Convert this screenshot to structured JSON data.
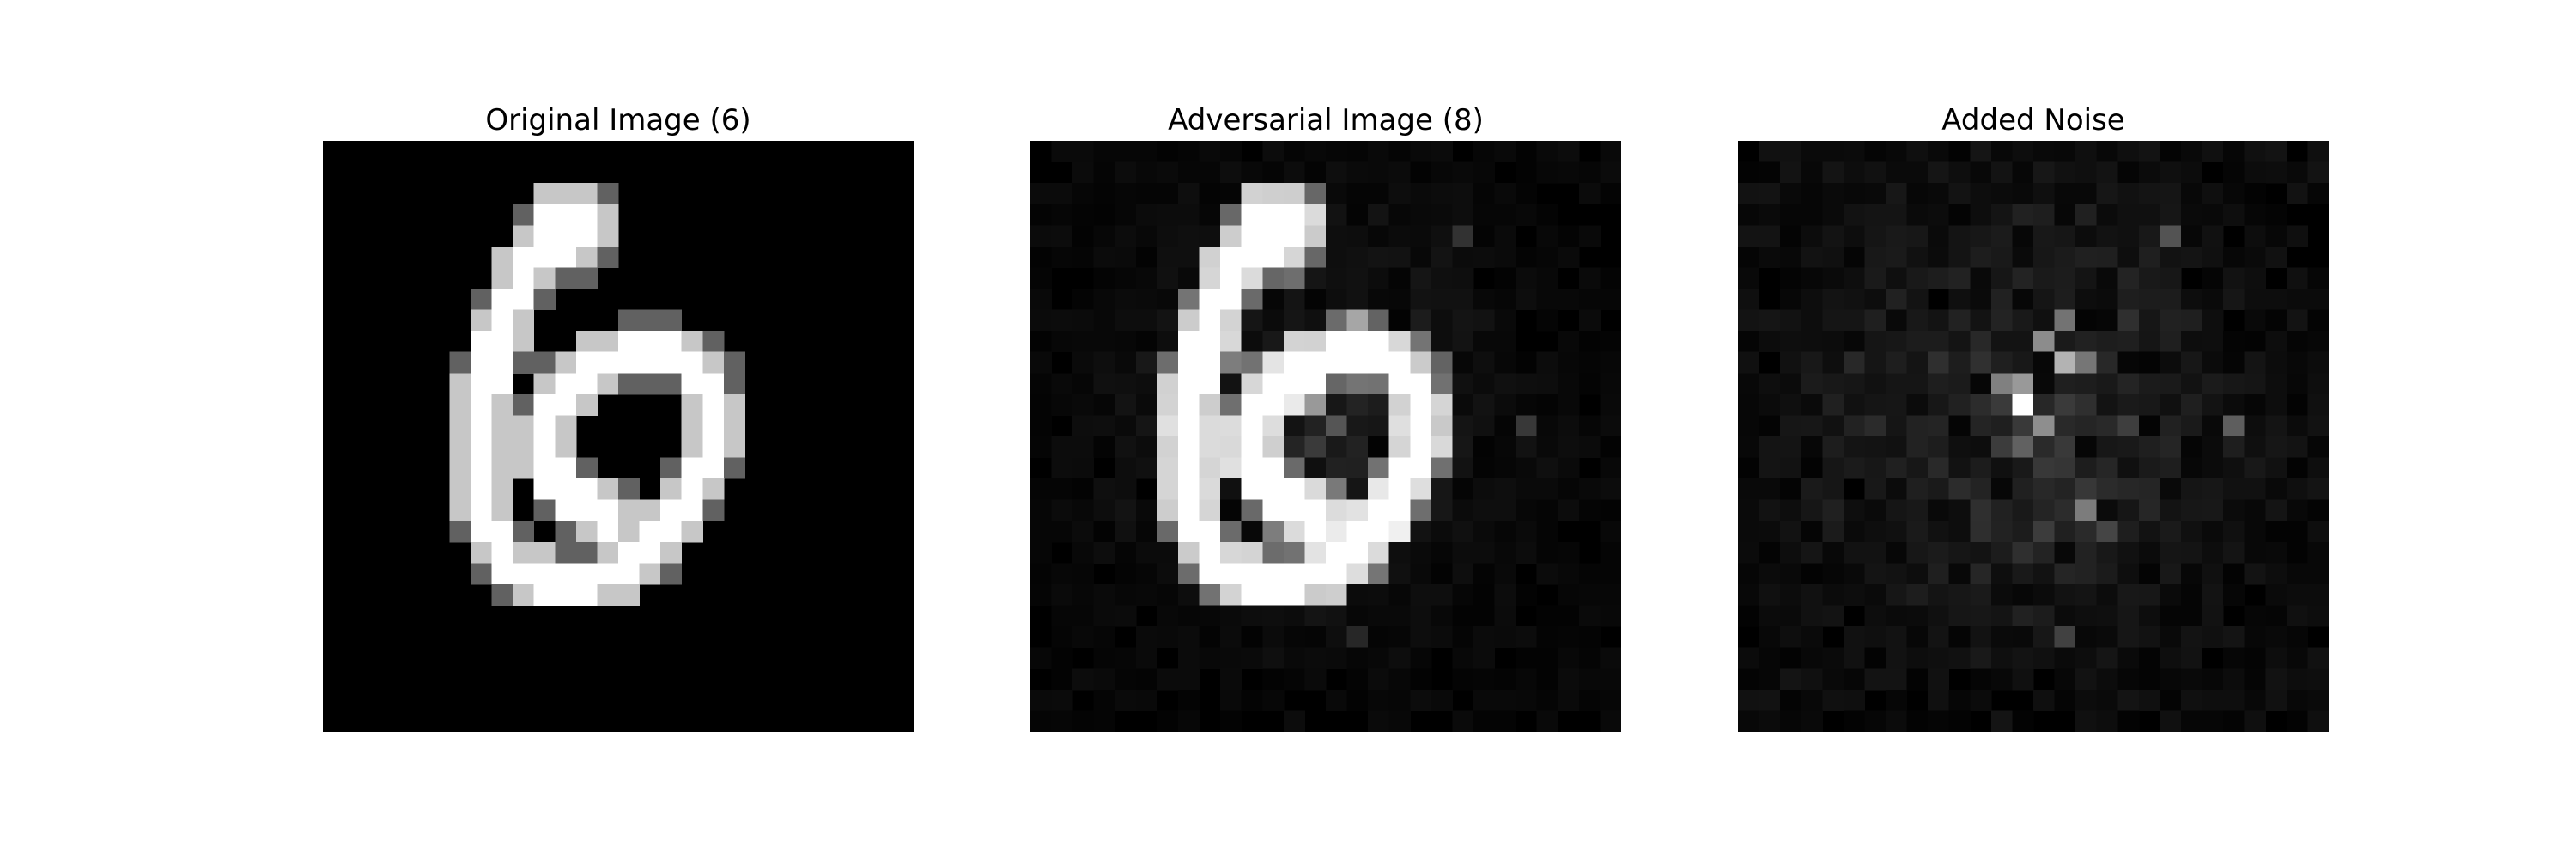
{
  "figure": {
    "panels": [
      {
        "title": "Original Image (6)",
        "content": "handwritten-digit-6"
      },
      {
        "title": "Adversarial Image (8)",
        "content": "handwritten-digit-6-with-noise"
      },
      {
        "title": "Added Noise",
        "content": "noise-pattern"
      }
    ]
  },
  "colors": {
    "background": "#ffffff",
    "image_background": "#000000",
    "digit_stroke": "#ffffff"
  }
}
